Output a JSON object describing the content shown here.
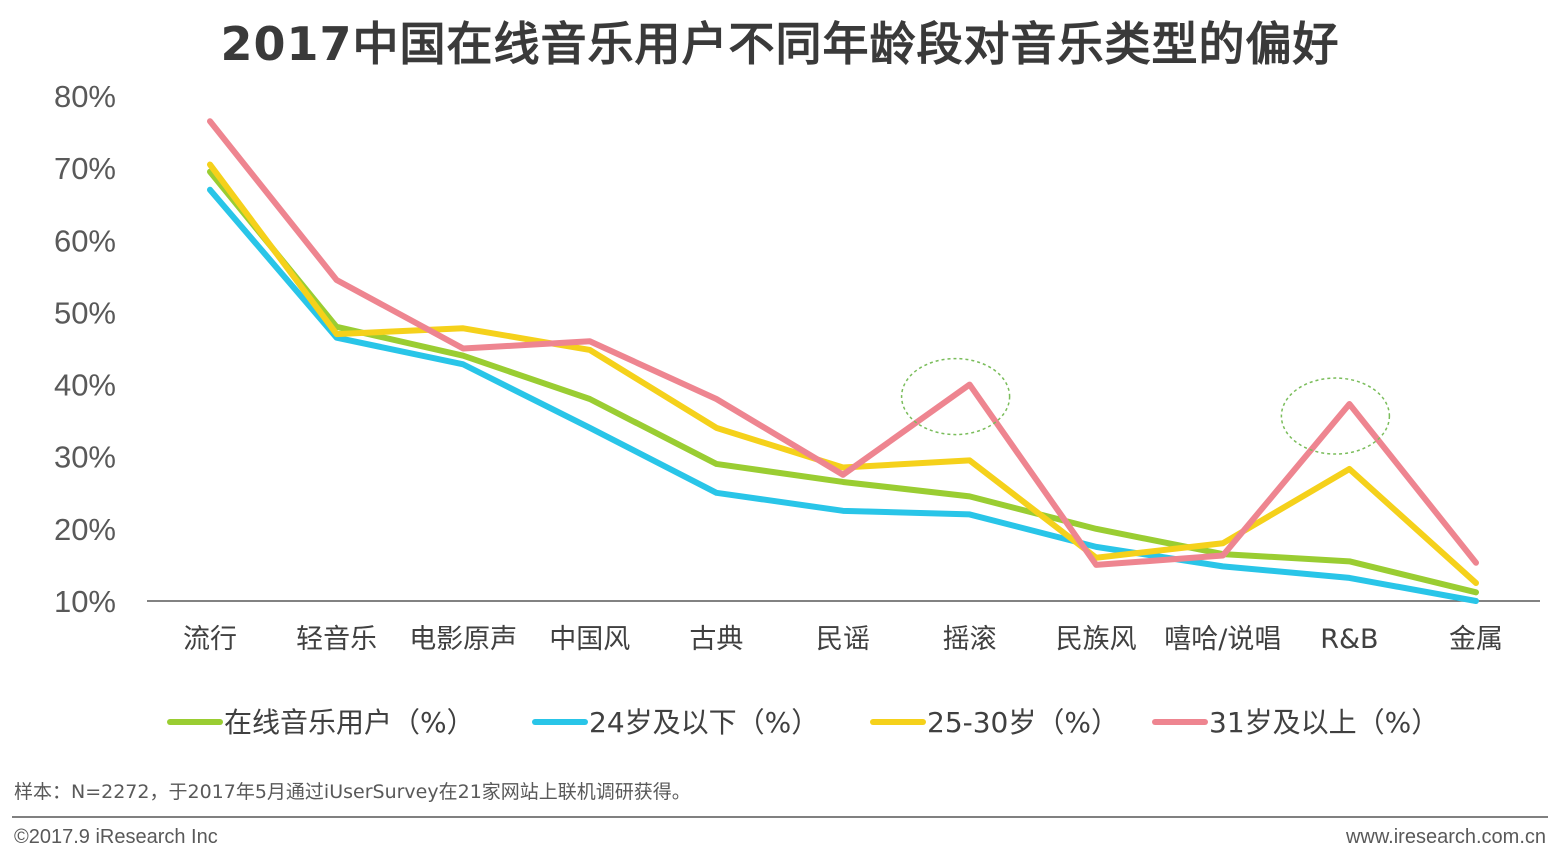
{
  "chart_data": {
    "type": "line",
    "title": "2017中国在线音乐用户不同年龄段对音乐类型的偏好",
    "categories": [
      "流行",
      "轻音乐",
      "电影原声",
      "中国风",
      "古典",
      "民谣",
      "摇滚",
      "民族风",
      "嘻哈/说唱",
      "R&B",
      "金属"
    ],
    "ylim": [
      10,
      80
    ],
    "yticks": [
      "10%",
      "20%",
      "30%",
      "40%",
      "50%",
      "60%",
      "70%",
      "80%"
    ],
    "ytick_values": [
      10,
      20,
      30,
      40,
      50,
      60,
      70,
      80
    ],
    "series": [
      {
        "name": "在线音乐用户（%）",
        "color": "#9ACD32",
        "values": [
          69.5,
          48.0,
          44.0,
          38.0,
          29.0,
          26.5,
          24.5,
          20.0,
          16.5,
          15.5,
          11.2
        ]
      },
      {
        "name": "24岁及以下（%）",
        "color": "#29C5E8",
        "values": [
          67.0,
          46.5,
          42.8,
          34.0,
          25.0,
          22.5,
          22.0,
          17.5,
          14.8,
          13.2,
          10.0
        ]
      },
      {
        "name": "25-30岁（%）",
        "color": "#F5D11B",
        "values": [
          70.5,
          47.0,
          47.8,
          44.8,
          34.0,
          28.5,
          29.5,
          16.0,
          18.0,
          28.3,
          12.5
        ]
      },
      {
        "name": "31岁及以上（%）",
        "color": "#EE8590",
        "values": [
          76.5,
          54.5,
          45.0,
          46.0,
          38.0,
          27.5,
          40.0,
          15.0,
          16.3,
          37.3,
          15.3
        ]
      }
    ],
    "annotations": [
      {
        "type": "ellipse",
        "category": "摇滚",
        "series": "31岁及以上（%）",
        "color": "#7ABD5B"
      },
      {
        "type": "ellipse",
        "category": "R&B",
        "series": "31岁及以上（%）",
        "color": "#7ABD5B"
      }
    ]
  },
  "footer": {
    "note": "样本：N=2272，于2017年5月通过iUserSurvey在21家网站上联机调研获得。",
    "copyright": "©2017.9 iResearch Inc",
    "website": "www.iresearch.com.cn"
  }
}
